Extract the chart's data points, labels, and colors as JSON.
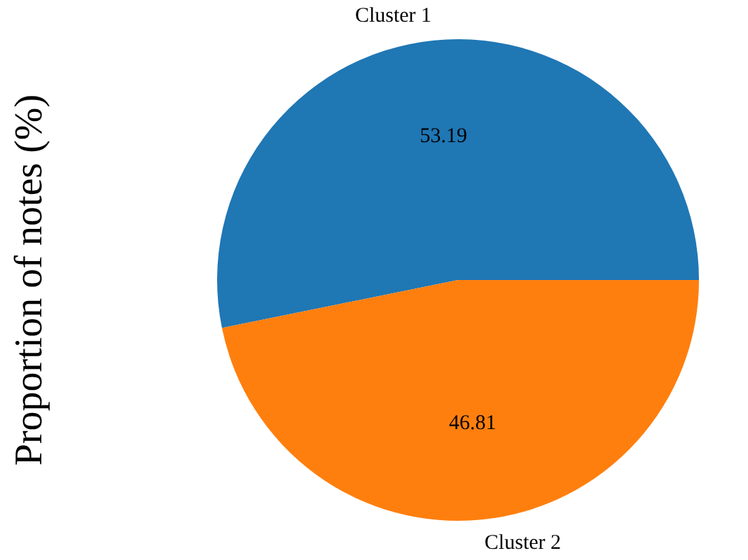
{
  "chart_data": {
    "type": "pie",
    "ylabel": "Proportion of notes (%)",
    "categories": [
      "Cluster 1",
      "Cluster 2"
    ],
    "values": [
      53.19,
      46.81
    ],
    "colors": [
      "#1f77b4",
      "#ff7f0e"
    ],
    "data_labels": true,
    "legend": false
  }
}
